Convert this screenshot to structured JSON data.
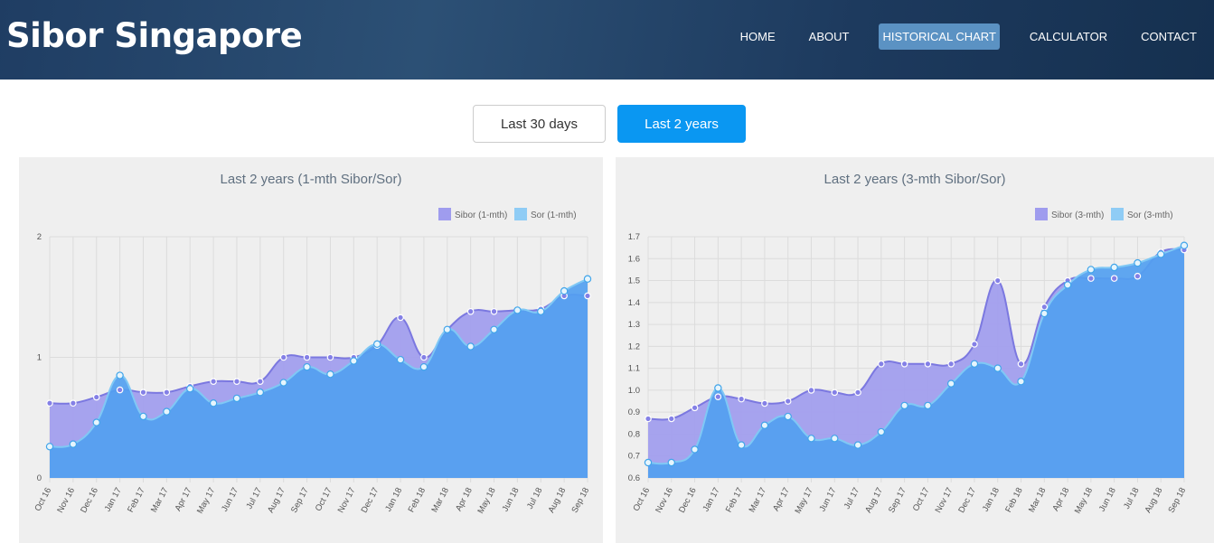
{
  "header": {
    "brand": "Sibor Singapore",
    "nav": [
      {
        "label": "HOME"
      },
      {
        "label": "ABOUT"
      },
      {
        "label": "HISTORICAL CHART",
        "active": true
      },
      {
        "label": "CALCULATOR"
      },
      {
        "label": "CONTACT"
      }
    ]
  },
  "toggle": {
    "option_30d": "Last 30 days",
    "option_2y": "Last 2 years"
  },
  "colors": {
    "sibor_fill": "#9f9cee",
    "sibor_line": "#7b78e0",
    "sor_fill": "#53a0f0",
    "sor_line": "#7fc8f5",
    "accent": "#0a97f2"
  },
  "chart_data": [
    {
      "type": "area",
      "title": "Last 2 years (1-mth Sibor/Sor)",
      "categories": [
        "Oct 16",
        "Nov 16",
        "Dec 16",
        "Jan 17",
        "Feb 17",
        "Mar 17",
        "Apr 17",
        "May 17",
        "Jun 17",
        "Jul 17",
        "Aug 17",
        "Sep 17",
        "Oct 17",
        "Nov 17",
        "Dec 17",
        "Jan 18",
        "Feb 18",
        "Mar 18",
        "Apr 18",
        "May 18",
        "Jun 18",
        "Jul 18",
        "Aug 18",
        "Sep 18"
      ],
      "series": [
        {
          "name": "Sibor (1-mth)",
          "values": [
            0.62,
            0.62,
            0.67,
            0.73,
            0.71,
            0.71,
            0.76,
            0.8,
            0.8,
            0.8,
            1.0,
            1.0,
            1.0,
            1.0,
            1.1,
            1.33,
            1.0,
            1.23,
            1.38,
            1.38,
            1.39,
            1.4,
            1.51,
            1.51
          ]
        },
        {
          "name": "Sor (1-mth)",
          "values": [
            0.26,
            0.28,
            0.46,
            0.85,
            0.51,
            0.55,
            0.74,
            0.62,
            0.66,
            0.71,
            0.79,
            0.92,
            0.86,
            0.97,
            1.11,
            0.98,
            0.92,
            1.23,
            1.09,
            1.23,
            1.39,
            1.38,
            1.55,
            1.65
          ]
        }
      ],
      "ylim": [
        0,
        2
      ],
      "yticks": [
        "0",
        "1",
        "2"
      ],
      "legend": "top-right",
      "grid": true
    },
    {
      "type": "area",
      "title": "Last 2 years (3-mth Sibor/Sor)",
      "categories": [
        "Oct 16",
        "Nov 16",
        "Dec 16",
        "Jan 17",
        "Feb 17",
        "Mar 17",
        "Apr 17",
        "May 17",
        "Jun 17",
        "Jul 17",
        "Aug 17",
        "Sep 17",
        "Oct 17",
        "Nov 17",
        "Dec 17",
        "Jan 18",
        "Feb 18",
        "Mar 18",
        "Apr 18",
        "May 18",
        "Jun 18",
        "Jul 18",
        "Aug 18",
        "Sep 18"
      ],
      "series": [
        {
          "name": "Sibor (3-mth)",
          "values": [
            0.87,
            0.87,
            0.92,
            0.97,
            0.96,
            0.94,
            0.95,
            1.0,
            0.99,
            0.99,
            1.12,
            1.12,
            1.12,
            1.12,
            1.21,
            1.5,
            1.12,
            1.38,
            1.5,
            1.51,
            1.51,
            1.52,
            1.63,
            1.64
          ]
        },
        {
          "name": "Sor (3-mth)",
          "values": [
            0.67,
            0.67,
            0.73,
            1.01,
            0.75,
            0.84,
            0.88,
            0.78,
            0.78,
            0.75,
            0.81,
            0.93,
            0.93,
            1.03,
            1.12,
            1.1,
            1.04,
            1.35,
            1.48,
            1.55,
            1.56,
            1.58,
            1.62,
            1.66
          ]
        }
      ],
      "ylim": [
        0.6,
        1.7
      ],
      "yticks": [
        "0.6",
        "0.7",
        "0.8",
        "0.9",
        "1.0",
        "1.1",
        "1.2",
        "1.3",
        "1.4",
        "1.5",
        "1.6",
        "1.7"
      ],
      "legend": "top-right",
      "grid": true
    }
  ]
}
